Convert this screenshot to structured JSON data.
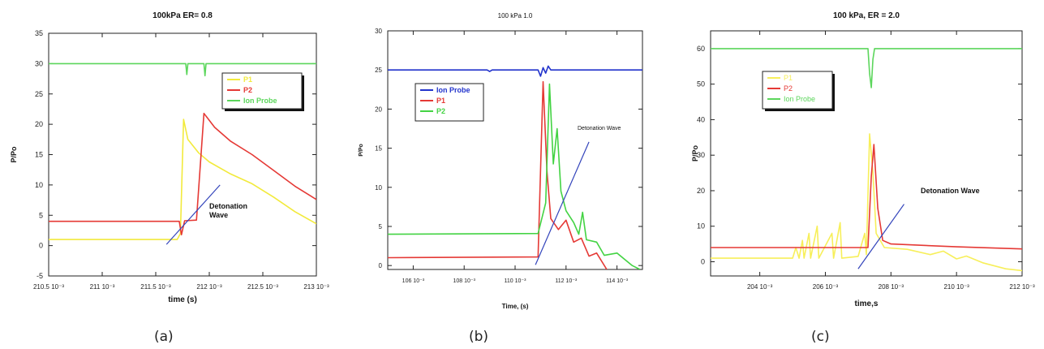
{
  "chart_data": [
    {
      "type": "line",
      "panel_label": "(a)",
      "title": "100kPa ER= 0.8",
      "xlabel": "time (s)",
      "ylabel": "P/Po",
      "xlim": [
        210.5,
        213.0
      ],
      "ylim": [
        -5,
        35
      ],
      "xticks": [
        "210.5 10⁻³",
        "211 10⁻³",
        "211.5 10⁻³",
        "212 10⁻³",
        "212.5 10⁻³",
        "213 10⁻³"
      ],
      "yticks": [
        -5,
        0,
        5,
        10,
        15,
        20,
        25,
        30,
        35
      ],
      "grid": false,
      "legend_position": "top-right",
      "annotation": {
        "text_lines": [
          "Detonation",
          "Wave"
        ],
        "line": [
          [
            211.6,
            0.2
          ],
          [
            212.1,
            10.0
          ]
        ]
      },
      "series": [
        {
          "name": "P1",
          "color": "#f2ea3c",
          "points": [
            [
              210.5,
              1.0
            ],
            [
              211.7,
              1.0
            ],
            [
              211.73,
              2.0
            ],
            [
              211.76,
              20.8
            ],
            [
              211.8,
              17.5
            ],
            [
              211.9,
              15.3
            ],
            [
              212.0,
              13.8
            ],
            [
              212.2,
              11.8
            ],
            [
              212.4,
              10.2
            ],
            [
              212.6,
              8.0
            ],
            [
              212.8,
              5.6
            ],
            [
              213.0,
              3.6
            ]
          ]
        },
        {
          "name": "P2",
          "color": "#e53935",
          "points": [
            [
              210.5,
              4.0
            ],
            [
              211.72,
              4.0
            ],
            [
              211.74,
              1.8
            ],
            [
              211.77,
              4.1
            ],
            [
              211.88,
              4.2
            ],
            [
              211.95,
              21.8
            ],
            [
              212.05,
              19.5
            ],
            [
              212.2,
              17.2
            ],
            [
              212.4,
              15.0
            ],
            [
              212.6,
              12.4
            ],
            [
              212.8,
              9.8
            ],
            [
              213.0,
              7.6
            ]
          ]
        },
        {
          "name": "Ion Probe",
          "color": "#5cd65c",
          "points": [
            [
              210.5,
              30.0
            ],
            [
              211.78,
              30.0
            ],
            [
              211.79,
              28.2
            ],
            [
              211.8,
              30.0
            ],
            [
              211.95,
              30.0
            ],
            [
              211.96,
              28.0
            ],
            [
              211.97,
              30.0
            ],
            [
              213.0,
              30.0
            ]
          ]
        }
      ]
    },
    {
      "type": "line",
      "panel_label": "(b)",
      "title": "100 kPa 1.0",
      "xlabel": "Time, (s)",
      "ylabel": "P/Po",
      "xlim": [
        105.0,
        115.0
      ],
      "ylim": [
        -0.5,
        30
      ],
      "xticks": [
        "106 10⁻³",
        "108 10⁻³",
        "110 10⁻³",
        "112 10⁻³",
        "114 10⁻³"
      ],
      "yticks": [
        0,
        5,
        10,
        15,
        20,
        25,
        30
      ],
      "grid": false,
      "legend_position": "top-left",
      "annotation": {
        "text_lines": [
          "Detonation Wave"
        ],
        "line": [
          [
            110.8,
            0.1
          ],
          [
            112.9,
            15.8
          ]
        ]
      },
      "series": [
        {
          "name": "Ion Probe",
          "color": "#2233cc",
          "points": [
            [
              105.0,
              25.0
            ],
            [
              108.9,
              25.0
            ],
            [
              109.0,
              24.8
            ],
            [
              109.1,
              25.0
            ],
            [
              110.9,
              25.0
            ],
            [
              111.0,
              24.2
            ],
            [
              111.1,
              25.3
            ],
            [
              111.2,
              24.6
            ],
            [
              111.3,
              25.5
            ],
            [
              111.4,
              25.0
            ],
            [
              115.0,
              25.0
            ]
          ]
        },
        {
          "name": "P1",
          "color": "#e53935",
          "points": [
            [
              105.0,
              1.0
            ],
            [
              110.9,
              1.1
            ],
            [
              111.1,
              23.5
            ],
            [
              111.25,
              12.0
            ],
            [
              111.4,
              6.0
            ],
            [
              111.7,
              4.6
            ],
            [
              112.0,
              5.8
            ],
            [
              112.3,
              3.0
            ],
            [
              112.6,
              3.5
            ],
            [
              112.9,
              1.2
            ],
            [
              113.2,
              1.6
            ],
            [
              113.6,
              -0.5
            ]
          ]
        },
        {
          "name": "P2",
          "color": "#43d343",
          "points": [
            [
              105.0,
              4.0
            ],
            [
              110.9,
              4.1
            ],
            [
              111.2,
              8.0
            ],
            [
              111.35,
              23.2
            ],
            [
              111.5,
              13.0
            ],
            [
              111.65,
              17.5
            ],
            [
              111.8,
              9.5
            ],
            [
              112.0,
              7.0
            ],
            [
              112.3,
              5.5
            ],
            [
              112.5,
              4.0
            ],
            [
              112.65,
              6.8
            ],
            [
              112.8,
              3.3
            ],
            [
              113.2,
              3.0
            ],
            [
              113.5,
              1.3
            ],
            [
              114.0,
              1.6
            ],
            [
              114.6,
              0.0
            ],
            [
              114.9,
              -0.5
            ]
          ]
        }
      ]
    },
    {
      "type": "line",
      "panel_label": "(c)",
      "title": "100 kPa, ER = 2.0",
      "xlabel": "time,s",
      "ylabel": "P/Po",
      "xlim": [
        202.5,
        212.0
      ],
      "ylim": [
        -4,
        65
      ],
      "xticks": [
        "204 10⁻³",
        "206 10⁻³",
        "208 10⁻³",
        "210 10⁻³",
        "212 10⁻³"
      ],
      "yticks": [
        0,
        10,
        20,
        30,
        40,
        50,
        60
      ],
      "grid": false,
      "legend_position": "top-left",
      "annotation": {
        "text_lines": [
          "Detonation Wave"
        ],
        "line": [
          [
            207.0,
            -2.0
          ],
          [
            208.4,
            16.2
          ]
        ]
      },
      "series": [
        {
          "name": "P1",
          "color": "#f7ef5a",
          "points": [
            [
              202.5,
              1.0
            ],
            [
              205.0,
              1.0
            ],
            [
              205.1,
              4.0
            ],
            [
              205.2,
              1.0
            ],
            [
              205.3,
              6.0
            ],
            [
              205.35,
              1.0
            ],
            [
              205.5,
              8.0
            ],
            [
              205.55,
              1.0
            ],
            [
              205.75,
              10.0
            ],
            [
              205.8,
              1.0
            ],
            [
              206.2,
              8.0
            ],
            [
              206.25,
              1.0
            ],
            [
              206.45,
              11.0
            ],
            [
              206.5,
              1.0
            ],
            [
              207.0,
              1.5
            ],
            [
              207.2,
              8.0
            ],
            [
              207.25,
              2.0
            ],
            [
              207.35,
              36.0
            ],
            [
              207.45,
              25.0
            ],
            [
              207.55,
              8.0
            ],
            [
              207.8,
              4.0
            ],
            [
              208.5,
              3.5
            ],
            [
              209.2,
              2.0
            ],
            [
              209.6,
              3.0
            ],
            [
              210.0,
              0.8
            ],
            [
              210.3,
              1.6
            ],
            [
              210.8,
              -0.3
            ],
            [
              211.5,
              -2.0
            ],
            [
              212.0,
              -2.5
            ]
          ]
        },
        {
          "name": "P2",
          "color": "#e53935",
          "points": [
            [
              202.5,
              4.0
            ],
            [
              207.3,
              4.0
            ],
            [
              207.4,
              24.0
            ],
            [
              207.48,
              33.0
            ],
            [
              207.6,
              15.0
            ],
            [
              207.75,
              6.0
            ],
            [
              208.0,
              5.0
            ],
            [
              210.0,
              4.2
            ],
            [
              212.0,
              3.6
            ]
          ]
        },
        {
          "name": "Ion Probe",
          "color": "#5cd65c",
          "points": [
            [
              202.5,
              60.0
            ],
            [
              207.3,
              60.0
            ],
            [
              207.35,
              53.0
            ],
            [
              207.4,
              49.0
            ],
            [
              207.45,
              57.0
            ],
            [
              207.5,
              60.0
            ],
            [
              212.0,
              60.0
            ]
          ]
        }
      ]
    }
  ]
}
